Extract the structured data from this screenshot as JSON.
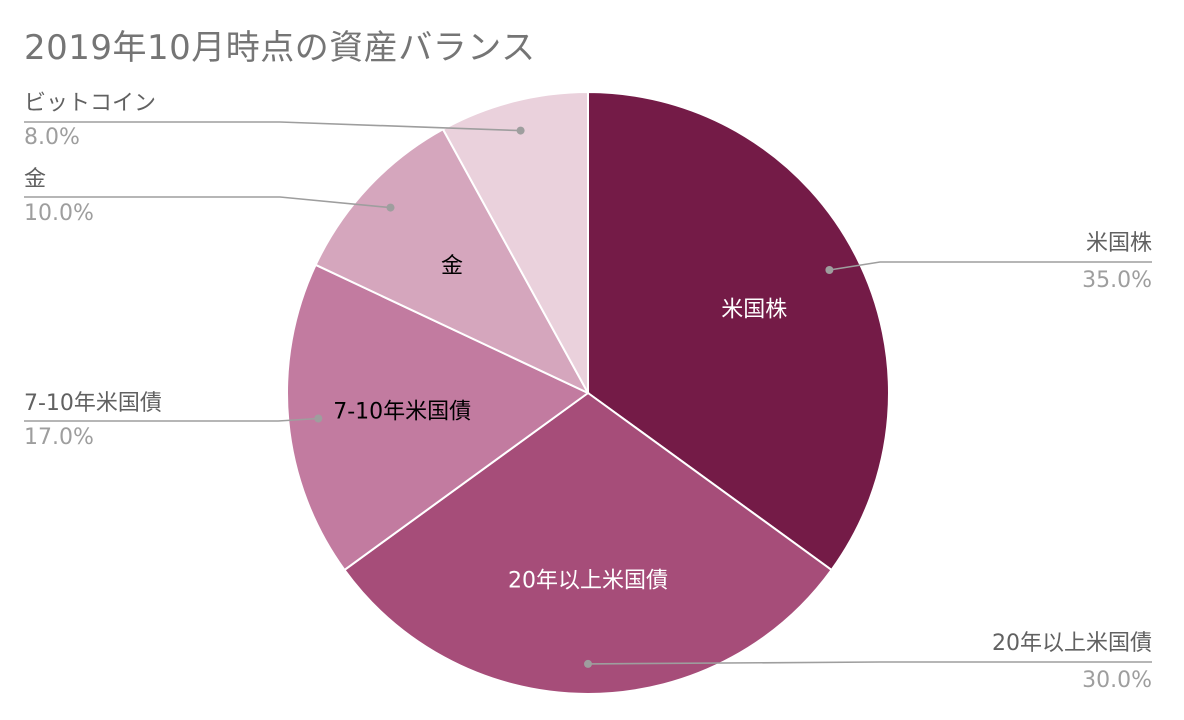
{
  "chart_data": {
    "type": "pie",
    "title": "2019年10月時点の資産バランス",
    "slices": [
      {
        "label": "米国株",
        "value": 35.0,
        "percent_label": "35.0%",
        "color": "#741b47",
        "inner_text_color": "#ffffff",
        "side": "right"
      },
      {
        "label": "20年以上米国債",
        "value": 30.0,
        "percent_label": "30.0%",
        "color": "#a64d79",
        "inner_text_color": "#ffffff",
        "side": "right"
      },
      {
        "label": "7-10年米国債",
        "value": 17.0,
        "percent_label": "17.0%",
        "color": "#c27ba0",
        "inner_text_color": "#000000",
        "side": "left"
      },
      {
        "label": "金",
        "value": 10.0,
        "percent_label": "10.0%",
        "color": "#d5a6bd",
        "inner_text_color": "#000000",
        "side": "left"
      },
      {
        "label": "ビットコイン",
        "value": 8.0,
        "percent_label": "8.0%",
        "color": "#ead1dc",
        "inner_text_color": "#000000",
        "side": "left",
        "show_inner_label": false
      }
    ],
    "start_angle": "12 o'clock",
    "direction": "clockwise",
    "legend": "callouts-with-leader-lines",
    "slice_border_color": "#ffffff",
    "leader_line_color": "#9e9e9e"
  }
}
